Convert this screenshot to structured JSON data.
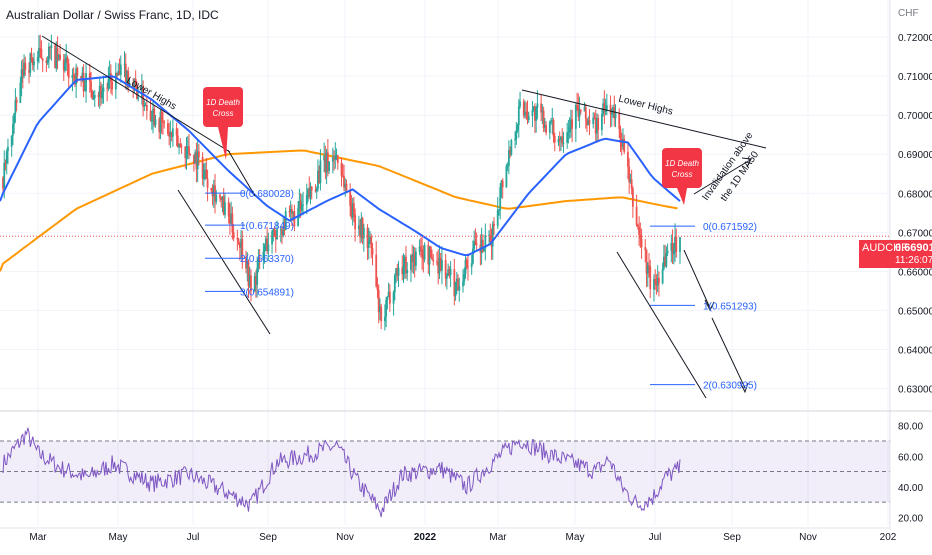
{
  "header": {
    "title": "Australian Dollar / Swiss Franc, 1D, IDC"
  },
  "colors": {
    "up": "#26a69a",
    "down": "#ef5350",
    "ma50": "#2962ff",
    "ma200": "#ff9800",
    "rsi": "#7e57c2",
    "fib": "#2962ff",
    "callout": "#f23645",
    "trend": "#131722"
  },
  "price_tag": {
    "symbol": "AUDCHF",
    "value": "0.669010",
    "time": "11:26:07"
  },
  "chart_data": {
    "type": "candlestick",
    "title": "Australian Dollar / Swiss Franc, 1D, IDC",
    "currency_label": "CHF",
    "x_ticks": [
      "Mar",
      "May",
      "Jul",
      "Sep",
      "Nov",
      "2022",
      "Mar",
      "May",
      "Jul",
      "Sep",
      "Nov",
      "202"
    ],
    "y_ticks": [
      "0.720000",
      "0.710000",
      "0.700000",
      "0.690000",
      "0.680000",
      "0.670000",
      "0.660000",
      "0.650000",
      "0.640000",
      "0.630000"
    ],
    "ylim": [
      0.6245,
      0.7295
    ],
    "close_anchors": [
      [
        "2021-02-01",
        0.684
      ],
      [
        "2021-02-18",
        0.713
      ],
      [
        "2021-03-10",
        0.716
      ],
      [
        "2021-04-01",
        0.71
      ],
      [
        "2021-04-20",
        0.706
      ],
      [
        "2021-05-10",
        0.711
      ],
      [
        "2021-06-01",
        0.701
      ],
      [
        "2021-06-20",
        0.693
      ],
      [
        "2021-07-05",
        0.69
      ],
      [
        "2021-07-20",
        0.682
      ],
      [
        "2021-08-01",
        0.674
      ],
      [
        "2021-08-15",
        0.665
      ],
      [
        "2021-08-20",
        0.6549
      ],
      [
        "2021-09-01",
        0.667
      ],
      [
        "2021-09-15",
        0.672
      ],
      [
        "2021-10-01",
        0.676
      ],
      [
        "2021-10-15",
        0.686
      ],
      [
        "2021-10-28",
        0.69
      ],
      [
        "2021-11-10",
        0.675
      ],
      [
        "2021-11-25",
        0.666
      ],
      [
        "2021-12-03",
        0.6455
      ],
      [
        "2021-12-15",
        0.66
      ],
      [
        "2022-01-05",
        0.665
      ],
      [
        "2022-01-20",
        0.662
      ],
      [
        "2022-02-01",
        0.656
      ],
      [
        "2022-02-15",
        0.665
      ],
      [
        "2022-03-01",
        0.667
      ],
      [
        "2022-03-10",
        0.682
      ],
      [
        "2022-03-25",
        0.702
      ],
      [
        "2022-04-10",
        0.7
      ],
      [
        "2022-04-25",
        0.694
      ],
      [
        "2022-05-10",
        0.701
      ],
      [
        "2022-05-25",
        0.697
      ],
      [
        "2022-06-05",
        0.703
      ],
      [
        "2022-06-15",
        0.694
      ],
      [
        "2022-06-22",
        0.681
      ],
      [
        "2022-06-28",
        0.671
      ],
      [
        "2022-07-10",
        0.655
      ],
      [
        "2022-07-20",
        0.664
      ],
      [
        "2022-08-01",
        0.669
      ]
    ],
    "ma50_anchors": [
      [
        "2021-02-01",
        0.68
      ],
      [
        "2021-03-01",
        0.698
      ],
      [
        "2021-04-01",
        0.709
      ],
      [
        "2021-05-01",
        0.71
      ],
      [
        "2021-06-01",
        0.704
      ],
      [
        "2021-07-01",
        0.696
      ],
      [
        "2021-08-01",
        0.686
      ],
      [
        "2021-09-01",
        0.677
      ],
      [
        "2021-09-20",
        0.673
      ],
      [
        "2021-10-20",
        0.678
      ],
      [
        "2021-11-10",
        0.681
      ],
      [
        "2021-12-01",
        0.676
      ],
      [
        "2022-01-01",
        0.67
      ],
      [
        "2022-01-20",
        0.666
      ],
      [
        "2022-02-10",
        0.664
      ],
      [
        "2022-03-01",
        0.667
      ],
      [
        "2022-04-01",
        0.68
      ],
      [
        "2022-05-01",
        0.69
      ],
      [
        "2022-06-01",
        0.694
      ],
      [
        "2022-06-20",
        0.693
      ],
      [
        "2022-07-10",
        0.684
      ],
      [
        "2022-08-01",
        0.678
      ]
    ],
    "ma200_anchors": [
      [
        "2021-02-01",
        0.662
      ],
      [
        "2021-04-01",
        0.676
      ],
      [
        "2021-06-01",
        0.685
      ],
      [
        "2021-08-01",
        0.69
      ],
      [
        "2021-10-01",
        0.691
      ],
      [
        "2021-12-01",
        0.687
      ],
      [
        "2022-02-01",
        0.679
      ],
      [
        "2022-03-15",
        0.676
      ],
      [
        "2022-05-01",
        0.678
      ],
      [
        "2022-06-15",
        0.679
      ],
      [
        "2022-07-15",
        0.677
      ],
      [
        "2022-08-01",
        0.676
      ]
    ],
    "rsi": {
      "ylim": [
        15,
        87
      ],
      "band": [
        30,
        70
      ],
      "y_ticks": [
        "80.00",
        "60.00",
        "40.00",
        "20.00"
      ],
      "anchors": [
        [
          "2021-02-01",
          55
        ],
        [
          "2021-02-20",
          75
        ],
        [
          "2021-03-01",
          62
        ],
        [
          "2021-03-20",
          52
        ],
        [
          "2021-04-10",
          46
        ],
        [
          "2021-05-01",
          55
        ],
        [
          "2021-06-01",
          42
        ],
        [
          "2021-07-01",
          48
        ],
        [
          "2021-08-01",
          36
        ],
        [
          "2021-08-20",
          28
        ],
        [
          "2021-09-10",
          56
        ],
        [
          "2021-10-01",
          60
        ],
        [
          "2021-10-28",
          67
        ],
        [
          "2021-11-15",
          42
        ],
        [
          "2021-12-03",
          24
        ],
        [
          "2021-12-20",
          48
        ],
        [
          "2022-01-20",
          52
        ],
        [
          "2022-02-10",
          40
        ],
        [
          "2022-03-01",
          55
        ],
        [
          "2022-03-25",
          71
        ],
        [
          "2022-04-15",
          62
        ],
        [
          "2022-05-05",
          56
        ],
        [
          "2022-05-25",
          50
        ],
        [
          "2022-06-05",
          58
        ],
        [
          "2022-06-15",
          40
        ],
        [
          "2022-06-28",
          28
        ],
        [
          "2022-07-10",
          33
        ],
        [
          "2022-07-20",
          46
        ],
        [
          "2022-08-01",
          52
        ]
      ]
    },
    "fib_sets": [
      {
        "levels": [
          {
            "prefix": "0",
            "text": "0(0.680028)",
            "value": 0.680028
          },
          {
            "prefix": "1",
            "text": "1(0.671849)",
            "value": 0.671849
          },
          {
            "prefix": "2",
            "text": "2(0.663370)",
            "value": 0.66337
          },
          {
            "prefix": "3",
            "text": "3(0.654891)",
            "value": 0.654891
          }
        ],
        "from": "2021-07-15",
        "to": "2021-08-10"
      },
      {
        "levels": [
          {
            "prefix": "0",
            "text": "0(0.671592)",
            "value": 0.671592
          },
          {
            "prefix": "1",
            "text": "1(0.651293)",
            "value": 0.651293
          },
          {
            "prefix": "2",
            "text": "2(0.630995)",
            "value": 0.630995
          }
        ],
        "from": "2022-07-01",
        "to": "2022-08-15"
      }
    ],
    "annotations": [
      {
        "text": "Lower Highs"
      },
      {
        "text": "Lower Highs"
      },
      {
        "text": "1D Death Cross"
      },
      {
        "text": "1D Death Cross"
      },
      {
        "text": "Invalidation above the 1D MA50"
      }
    ]
  }
}
